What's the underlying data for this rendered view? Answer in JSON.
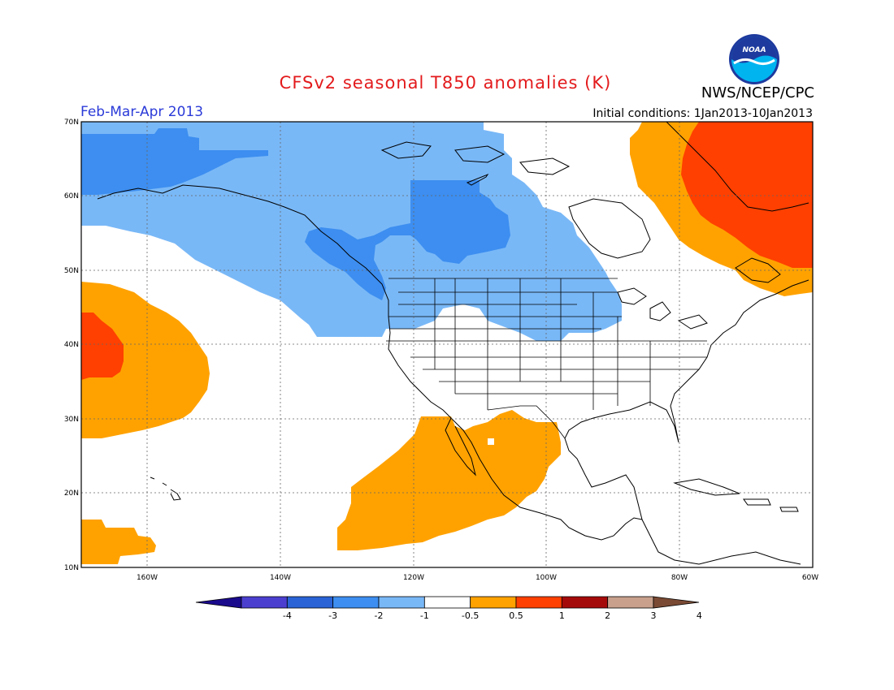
{
  "title": "CFSv2 seasonal T850 anomalies (K)",
  "organization": "NWS/NCEP/CPC",
  "season": "Feb-Mar-Apr 2013",
  "initial_conditions": "Initial conditions: 1Jan2013-10Jan2013",
  "logo_text": "NOAA",
  "axes": {
    "lat_labels": [
      "70N",
      "60N",
      "50N",
      "40N",
      "30N",
      "20N",
      "10N"
    ],
    "lon_labels": [
      "160W",
      "140W",
      "120W",
      "100W",
      "80W",
      "60W"
    ]
  },
  "colorbar": {
    "tick_labels": [
      "-4",
      "-3",
      "-2",
      "-1",
      "-0.5",
      "0.5",
      "1",
      "2",
      "3",
      "4"
    ],
    "colors": [
      "#1a0a8c",
      "#4b3fcf",
      "#2a63d6",
      "#3d8ef0",
      "#79b8f7",
      "#ffffff",
      "#ffa200",
      "#ff4000",
      "#a50a0a",
      "#c8a08c",
      "#7a4a34"
    ]
  }
}
